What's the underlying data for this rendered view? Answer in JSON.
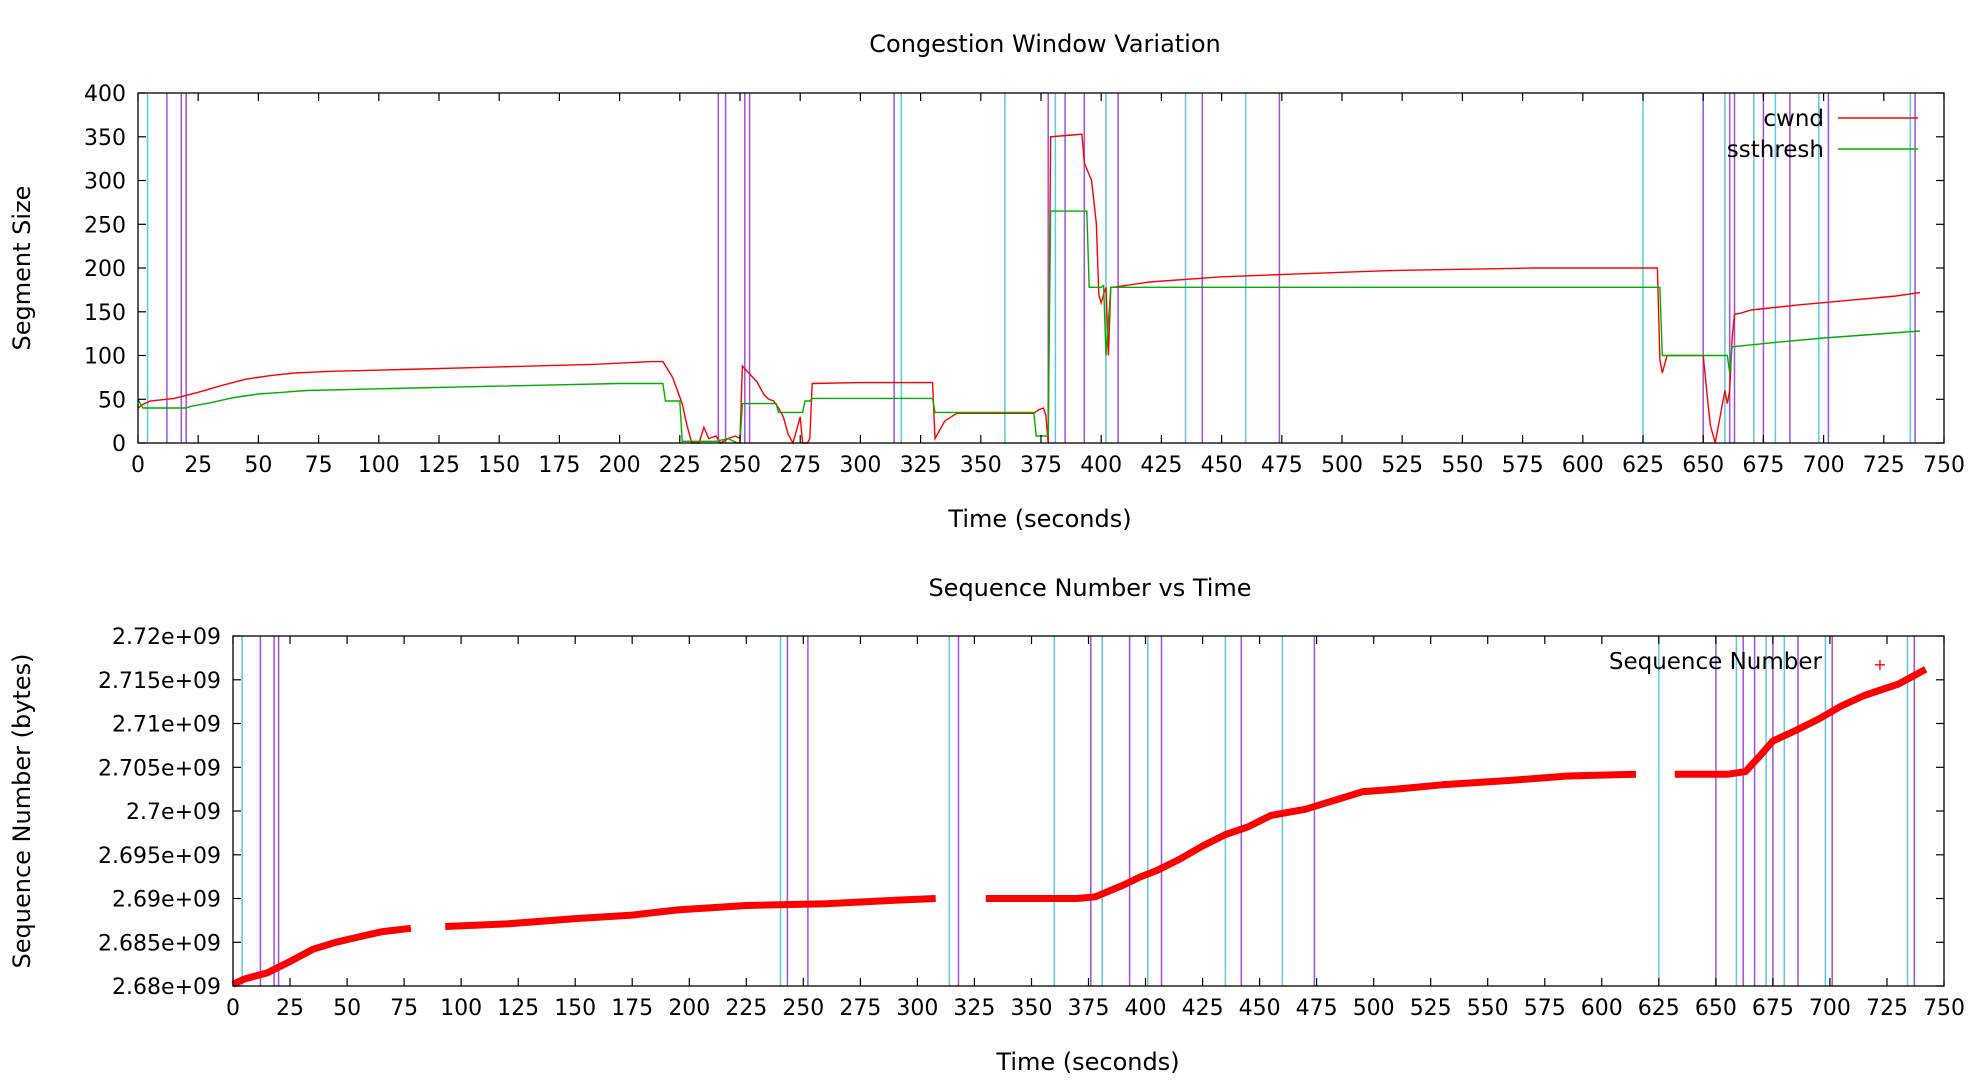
{
  "colors": {
    "cwnd": "#ff0000",
    "ssthresh": "#00b000",
    "seq": "#ff0000",
    "event_cyan": "#5fc8dc",
    "event_purple": "#a050e0",
    "frame": "#000000"
  },
  "chart_data": [
    {
      "id": "cwnd-chart",
      "type": "line",
      "title": "Congestion Window Variation",
      "xlabel": "Time (seconds)",
      "ylabel": "Segment Size",
      "xlim": [
        0,
        750
      ],
      "ylim": [
        0,
        400
      ],
      "x_ticks": [
        0,
        25,
        50,
        75,
        100,
        125,
        150,
        175,
        200,
        225,
        250,
        275,
        300,
        325,
        350,
        375,
        400,
        425,
        450,
        475,
        500,
        525,
        550,
        575,
        600,
        625,
        650,
        675,
        700,
        725,
        750
      ],
      "y_ticks": [
        0,
        50,
        100,
        150,
        200,
        250,
        300,
        350,
        400
      ],
      "legend_position": "top-right",
      "series": [
        {
          "name": "cwnd",
          "points": [
            [
              0,
              40
            ],
            [
              2,
              44
            ],
            [
              5,
              48
            ],
            [
              15,
              51
            ],
            [
              25,
              58
            ],
            [
              35,
              66
            ],
            [
              45,
              73
            ],
            [
              55,
              77
            ],
            [
              65,
              80
            ],
            [
              80,
              82
            ],
            [
              110,
              84
            ],
            [
              150,
              87
            ],
            [
              190,
              90
            ],
            [
              213,
              93
            ],
            [
              218,
              93
            ],
            [
              222,
              75
            ],
            [
              226,
              45
            ],
            [
              228,
              20
            ],
            [
              230,
              0
            ],
            [
              233,
              0
            ],
            [
              235,
              18
            ],
            [
              237,
              5
            ],
            [
              240,
              8
            ],
            [
              242,
              0
            ],
            [
              245,
              5
            ],
            [
              248,
              8
            ],
            [
              250,
              5
            ],
            [
              251,
              88
            ],
            [
              253,
              82
            ],
            [
              257,
              70
            ],
            [
              260,
              55
            ],
            [
              262,
              50
            ],
            [
              264,
              48
            ],
            [
              266,
              40
            ],
            [
              268,
              30
            ],
            [
              270,
              10
            ],
            [
              272,
              0
            ],
            [
              275,
              30
            ],
            [
              276,
              0
            ],
            [
              278,
              0
            ],
            [
              279,
              5
            ],
            [
              280,
              68
            ],
            [
              300,
              69
            ],
            [
              329,
              69
            ],
            [
              330,
              69
            ],
            [
              331,
              5
            ],
            [
              335,
              25
            ],
            [
              340,
              34
            ],
            [
              372,
              34
            ],
            [
              374,
              38
            ],
            [
              376,
              40
            ],
            [
              377,
              32
            ],
            [
              378,
              0
            ],
            [
              379,
              350
            ],
            [
              388,
              352
            ],
            [
              392,
              353
            ],
            [
              393,
              320
            ],
            [
              396,
              300
            ],
            [
              398,
              250
            ],
            [
              399,
              170
            ],
            [
              400,
              160
            ],
            [
              401,
              170
            ],
            [
              402,
              178
            ],
            [
              403,
              100
            ],
            [
              404,
              178
            ],
            [
              405,
              178
            ],
            [
              420,
              184
            ],
            [
              450,
              190
            ],
            [
              480,
              193
            ],
            [
              520,
              197
            ],
            [
              580,
              200
            ],
            [
              631,
              200
            ],
            [
              632,
              95
            ],
            [
              633,
              80
            ],
            [
              634,
              90
            ],
            [
              635,
              100
            ],
            [
              650,
              100
            ],
            [
              652,
              45
            ],
            [
              653,
              20
            ],
            [
              655,
              0
            ],
            [
              657,
              30
            ],
            [
              659,
              60
            ],
            [
              660,
              45
            ],
            [
              661,
              60
            ],
            [
              662,
              120
            ],
            [
              663,
              147
            ],
            [
              665,
              148
            ],
            [
              670,
              152
            ],
            [
              690,
              158
            ],
            [
              710,
              163
            ],
            [
              730,
              168
            ],
            [
              740,
              172
            ]
          ]
        },
        {
          "name": "ssthresh",
          "points": [
            [
              0,
              50
            ],
            [
              2,
              40
            ],
            [
              20,
              40
            ],
            [
              22,
              42
            ],
            [
              30,
              46
            ],
            [
              40,
              52
            ],
            [
              50,
              56
            ],
            [
              60,
              58
            ],
            [
              70,
              60
            ],
            [
              100,
              62
            ],
            [
              150,
              65
            ],
            [
              200,
              68
            ],
            [
              218,
              68
            ],
            [
              219,
              48
            ],
            [
              225,
              48
            ],
            [
              226,
              2
            ],
            [
              240,
              2
            ],
            [
              245,
              5
            ],
            [
              249,
              0
            ],
            [
              250,
              0
            ],
            [
              251,
              45
            ],
            [
              265,
              45
            ],
            [
              266,
              35
            ],
            [
              276,
              35
            ],
            [
              277,
              48
            ],
            [
              279,
              48
            ],
            [
              280,
              51
            ],
            [
              329,
              51
            ],
            [
              330,
              51
            ],
            [
              331,
              35
            ],
            [
              372,
              35
            ],
            [
              373,
              8
            ],
            [
              378,
              8
            ],
            [
              379,
              265
            ],
            [
              394,
              265
            ],
            [
              395,
              178
            ],
            [
              400,
              178
            ],
            [
              401,
              180
            ],
            [
              402,
              100
            ],
            [
              404,
              178
            ],
            [
              632,
              178
            ],
            [
              633,
              100
            ],
            [
              659,
              100
            ],
            [
              660,
              100
            ],
            [
              661,
              80
            ],
            [
              662,
              110
            ],
            [
              680,
              115
            ],
            [
              700,
              120
            ],
            [
              720,
              124
            ],
            [
              740,
              128
            ]
          ]
        }
      ],
      "event_lines_cyan": [
        4,
        317,
        360,
        381,
        402,
        435,
        460,
        625,
        659,
        671,
        680,
        698,
        736
      ],
      "event_lines_purple": [
        12,
        18,
        20,
        241,
        244,
        252,
        254,
        314,
        378,
        385,
        393,
        407,
        442,
        474,
        650,
        661,
        663,
        675,
        686,
        702,
        738
      ]
    },
    {
      "id": "seq-chart",
      "type": "scatter",
      "title": "Sequence Number vs Time",
      "xlabel": "Time (seconds)",
      "ylabel": "Sequence Number (bytes)",
      "xlim": [
        0,
        750
      ],
      "ylim": [
        2680000000.0,
        2720000000.0
      ],
      "x_ticks": [
        0,
        25,
        50,
        75,
        100,
        125,
        150,
        175,
        200,
        225,
        250,
        275,
        300,
        325,
        350,
        375,
        400,
        425,
        450,
        475,
        500,
        525,
        550,
        575,
        600,
        625,
        650,
        675,
        700,
        725,
        750
      ],
      "y_ticks": [
        2680000000.0,
        2685000000.0,
        2690000000.0,
        2695000000.0,
        2700000000.0,
        2705000000.0,
        2710000000.0,
        2715000000.0,
        2720000000.0
      ],
      "y_tick_labels": [
        "2.68e+09",
        "2.685e+09",
        "2.69e+09",
        "2.695e+09",
        "2.7e+09",
        "2.705e+09",
        "2.71e+09",
        "2.715e+09",
        "2.72e+09"
      ],
      "legend_position": "top-right",
      "series": [
        {
          "name": "Sequence Number",
          "segments": [
            [
              [
                0,
                2680200000.0
              ],
              [
                5,
                2680800000.0
              ],
              [
                15,
                2681500000.0
              ],
              [
                25,
                2682800000.0
              ],
              [
                35,
                2684200000.0
              ],
              [
                45,
                2685000000.0
              ],
              [
                55,
                2685600000.0
              ],
              [
                65,
                2686200000.0
              ],
              [
                78,
                2686600000.0
              ]
            ],
            [
              [
                93,
                2686800000.0
              ],
              [
                120,
                2687100000.0
              ],
              [
                150,
                2687700000.0
              ],
              [
                175,
                2688100000.0
              ],
              [
                195,
                2688700000.0
              ],
              [
                225,
                2689200000.0
              ],
              [
                260,
                2689400000.0
              ],
              [
                290,
                2689800000.0
              ],
              [
                308,
                2690000000.0
              ]
            ],
            [
              [
                330,
                2690000000.0
              ],
              [
                350,
                2690000000.0
              ],
              [
                370,
                2690000000.0
              ],
              [
                378,
                2690200000.0
              ],
              [
                390,
                2691500000.0
              ],
              [
                398,
                2692500000.0
              ],
              [
                405,
                2693200000.0
              ],
              [
                415,
                2694500000.0
              ],
              [
                425,
                2696000000.0
              ],
              [
                435,
                2697300000.0
              ],
              [
                445,
                2698200000.0
              ],
              [
                455,
                2699500000.0
              ],
              [
                470,
                2700200000.0
              ],
              [
                480,
                2701000000.0
              ],
              [
                495,
                2702200000.0
              ],
              [
                510,
                2702500000.0
              ],
              [
                530,
                2703000000.0
              ],
              [
                560,
                2703500000.0
              ],
              [
                585,
                2704000000.0
              ],
              [
                615,
                2704200000.0
              ]
            ],
            [
              [
                632,
                2704200000.0
              ],
              [
                655,
                2704200000.0
              ],
              [
                663,
                2704500000.0
              ],
              [
                670,
                2706500000.0
              ],
              [
                675,
                2708000000.0
              ],
              [
                685,
                2709200000.0
              ],
              [
                695,
                2710500000.0
              ],
              [
                705,
                2712000000.0
              ],
              [
                715,
                2713200000.0
              ],
              [
                730,
                2714500000.0
              ],
              [
                742,
                2716200000.0
              ]
            ]
          ]
        }
      ],
      "event_lines_cyan": [
        4,
        240,
        314,
        360,
        381,
        401,
        435,
        460,
        625,
        659,
        672,
        680,
        698,
        734
      ],
      "event_lines_purple": [
        12,
        18,
        20,
        243,
        252,
        318,
        376,
        393,
        407,
        442,
        474,
        650,
        662,
        667,
        675,
        686,
        701,
        737
      ]
    }
  ]
}
